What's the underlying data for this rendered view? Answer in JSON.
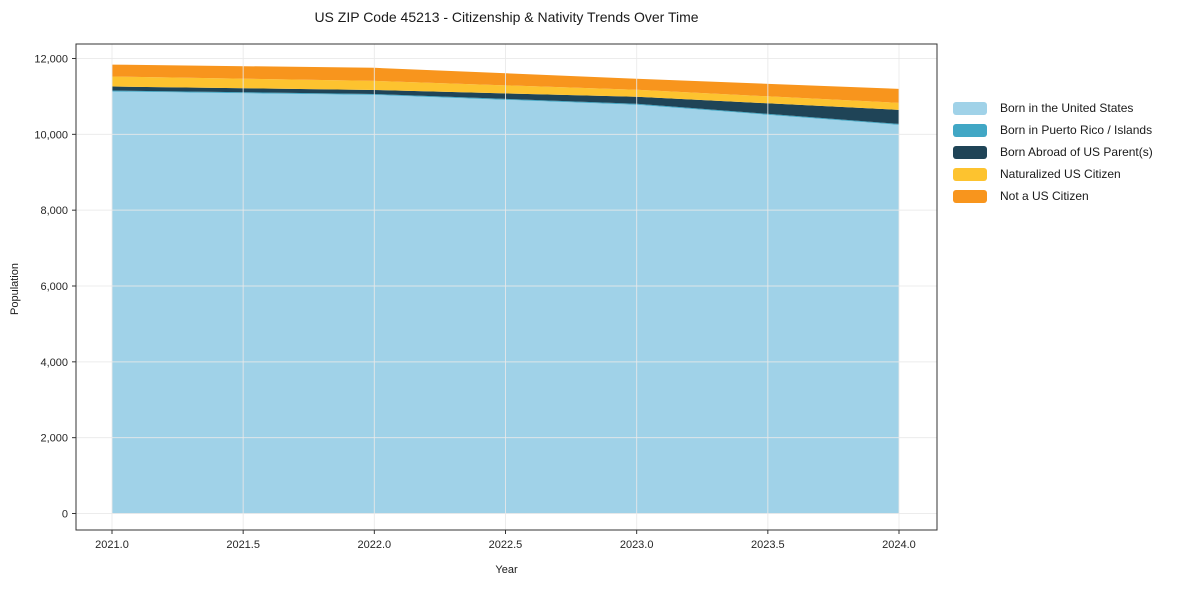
{
  "title": "US ZIP Code 45213 - Citizenship & Nativity Trends Over Time",
  "chart_data": {
    "type": "area",
    "stacked": true,
    "title": "US ZIP Code 45213 - Citizenship & Nativity Trends Over Time",
    "xlabel": "Year",
    "ylabel": "Population",
    "x": [
      2021,
      2022,
      2023,
      2024
    ],
    "series": [
      {
        "name": "Born in the United States",
        "color": "#A0D2E8",
        "values": [
          11130,
          11040,
          10780,
          10250
        ]
      },
      {
        "name": "Born in Puerto Rico / Islands",
        "color": "#41A7C5",
        "values": [
          25,
          25,
          25,
          25
        ]
      },
      {
        "name": "Born Abroad of US Parent(s)",
        "color": "#1F4457",
        "values": [
          105,
          105,
          185,
          370
        ]
      },
      {
        "name": "Naturalized US Citizen",
        "color": "#FDC32F",
        "values": [
          265,
          240,
          185,
          185
        ]
      },
      {
        "name": "Not a US Citizen",
        "color": "#F8951D",
        "values": [
          315,
          345,
          290,
          370
        ]
      }
    ],
    "x_ticks": [
      {
        "value": 2021.0,
        "label": "2021.0"
      },
      {
        "value": 2021.5,
        "label": "2021.5"
      },
      {
        "value": 2022.0,
        "label": "2022.0"
      },
      {
        "value": 2022.5,
        "label": "2022.5"
      },
      {
        "value": 2023.0,
        "label": "2023.0"
      },
      {
        "value": 2023.5,
        "label": "2023.5"
      },
      {
        "value": 2024.0,
        "label": "2024.0"
      }
    ],
    "y_ticks": [
      {
        "value": 0,
        "label": "0"
      },
      {
        "value": 2000,
        "label": "2,000"
      },
      {
        "value": 4000,
        "label": "4,000"
      },
      {
        "value": 6000,
        "label": "6,000"
      },
      {
        "value": 8000,
        "label": "8,000"
      },
      {
        "value": 10000,
        "label": "10,000"
      },
      {
        "value": 12000,
        "label": "12,000"
      }
    ],
    "xlim": [
      2020.86,
      2024.15
    ],
    "ylim": [
      -435,
      12385
    ],
    "grid": true,
    "legend_position": "right"
  }
}
